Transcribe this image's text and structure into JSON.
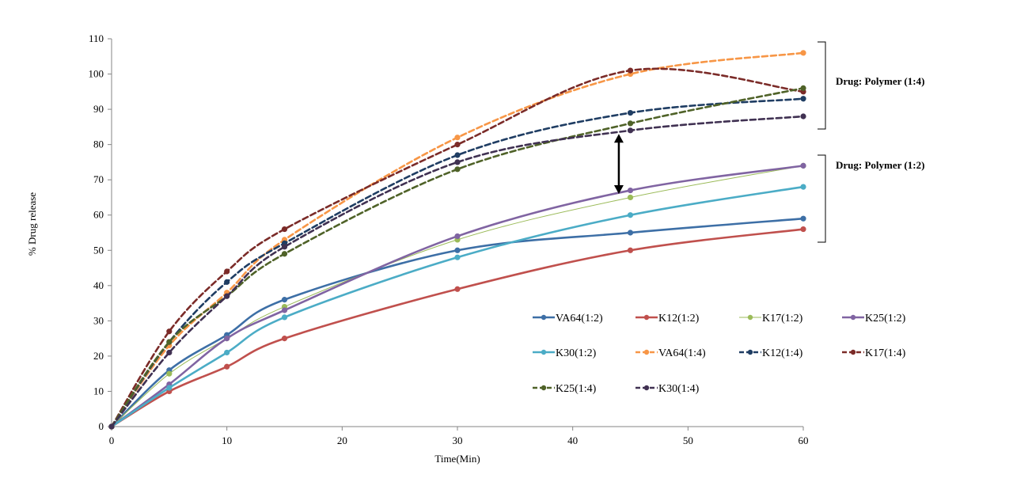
{
  "chart_data": {
    "type": "line",
    "xlabel": "Time(Min)",
    "ylabel": "% Drug release",
    "xlim": [
      0,
      60
    ],
    "ylim": [
      0,
      110
    ],
    "xticks": [
      0,
      10,
      20,
      30,
      40,
      50,
      60
    ],
    "yticks": [
      0,
      10,
      20,
      30,
      40,
      50,
      60,
      70,
      80,
      90,
      100,
      110
    ],
    "x": [
      0,
      5,
      10,
      15,
      30,
      45,
      60
    ],
    "grid": false,
    "legend_position": "bottom-right",
    "series": [
      {
        "name": "VA64(1:2)",
        "color": "#3d6fa6",
        "style": "solid",
        "values": [
          0,
          16,
          26,
          36,
          50,
          55,
          59
        ]
      },
      {
        "name": "K12(1:2)",
        "color": "#c0504d",
        "style": "solid",
        "values": [
          0,
          10,
          17,
          25,
          39,
          50,
          56
        ]
      },
      {
        "name": "K17(1:2)",
        "color": "#9bbb59",
        "style": "solid-thin",
        "values": [
          0,
          15,
          25,
          34,
          53,
          65,
          74
        ]
      },
      {
        "name": "K25(1:2)",
        "color": "#8064a2",
        "style": "solid",
        "values": [
          0,
          12,
          25,
          33,
          54,
          67,
          74
        ]
      },
      {
        "name": "K30(1:2)",
        "color": "#4bacc6",
        "style": "solid",
        "values": [
          0,
          11,
          21,
          31,
          48,
          60,
          68
        ]
      },
      {
        "name": "VA64(1:4)",
        "color": "#f79646",
        "style": "dashed",
        "values": [
          0,
          23,
          38,
          53,
          82,
          100,
          106
        ]
      },
      {
        "name": "K12(1:4)",
        "color": "#1f3d63",
        "style": "dashed",
        "values": [
          0,
          24,
          41,
          52,
          77,
          89,
          93
        ]
      },
      {
        "name": "K17(1:4)",
        "color": "#7b2b28",
        "style": "dashed",
        "values": [
          0,
          27,
          44,
          56,
          80,
          101,
          95
        ]
      },
      {
        "name": "K25(1:4)",
        "color": "#4f6228",
        "style": "dashed",
        "values": [
          0,
          24,
          37,
          49,
          73,
          86,
          96
        ]
      },
      {
        "name": "K30(1:4)",
        "color": "#403152",
        "style": "dashed",
        "values": [
          0,
          21,
          37,
          51,
          75,
          84,
          88
        ]
      }
    ],
    "annotations": {
      "group_1_4": "Drug: Polymer  (1:4)",
      "group_1_2": "Drug: Polymer  (1:2)",
      "arrow": {
        "x": 44,
        "y_from": 66,
        "y_to": 83
      }
    }
  }
}
